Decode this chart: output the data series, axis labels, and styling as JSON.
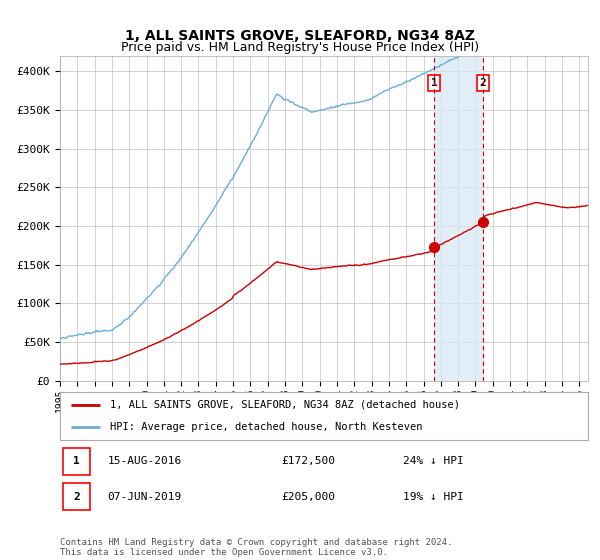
{
  "title": "1, ALL SAINTS GROVE, SLEAFORD, NG34 8AZ",
  "subtitle": "Price paid vs. HM Land Registry's House Price Index (HPI)",
  "ylabel_ticks": [
    "£0",
    "£50K",
    "£100K",
    "£150K",
    "£200K",
    "£250K",
    "£300K",
    "£350K",
    "£400K"
  ],
  "ytick_values": [
    0,
    50000,
    100000,
    150000,
    200000,
    250000,
    300000,
    350000,
    400000
  ],
  "ylim": [
    0,
    420000
  ],
  "xlim_start": 1995.0,
  "xlim_end": 2025.5,
  "hpi_color": "#6baed6",
  "hpi_fill_color": "#d6e8f5",
  "price_color": "#cc0000",
  "marker1_date": 2016.62,
  "marker1_price": 172500,
  "marker2_date": 2019.44,
  "marker2_price": 205000,
  "legend_label1": "1, ALL SAINTS GROVE, SLEAFORD, NG34 8AZ (detached house)",
  "legend_label2": "HPI: Average price, detached house, North Kesteven",
  "footer": "Contains HM Land Registry data © Crown copyright and database right 2024.\nThis data is licensed under the Open Government Licence v3.0.",
  "background_color": "#ffffff",
  "grid_color": "#cccccc"
}
